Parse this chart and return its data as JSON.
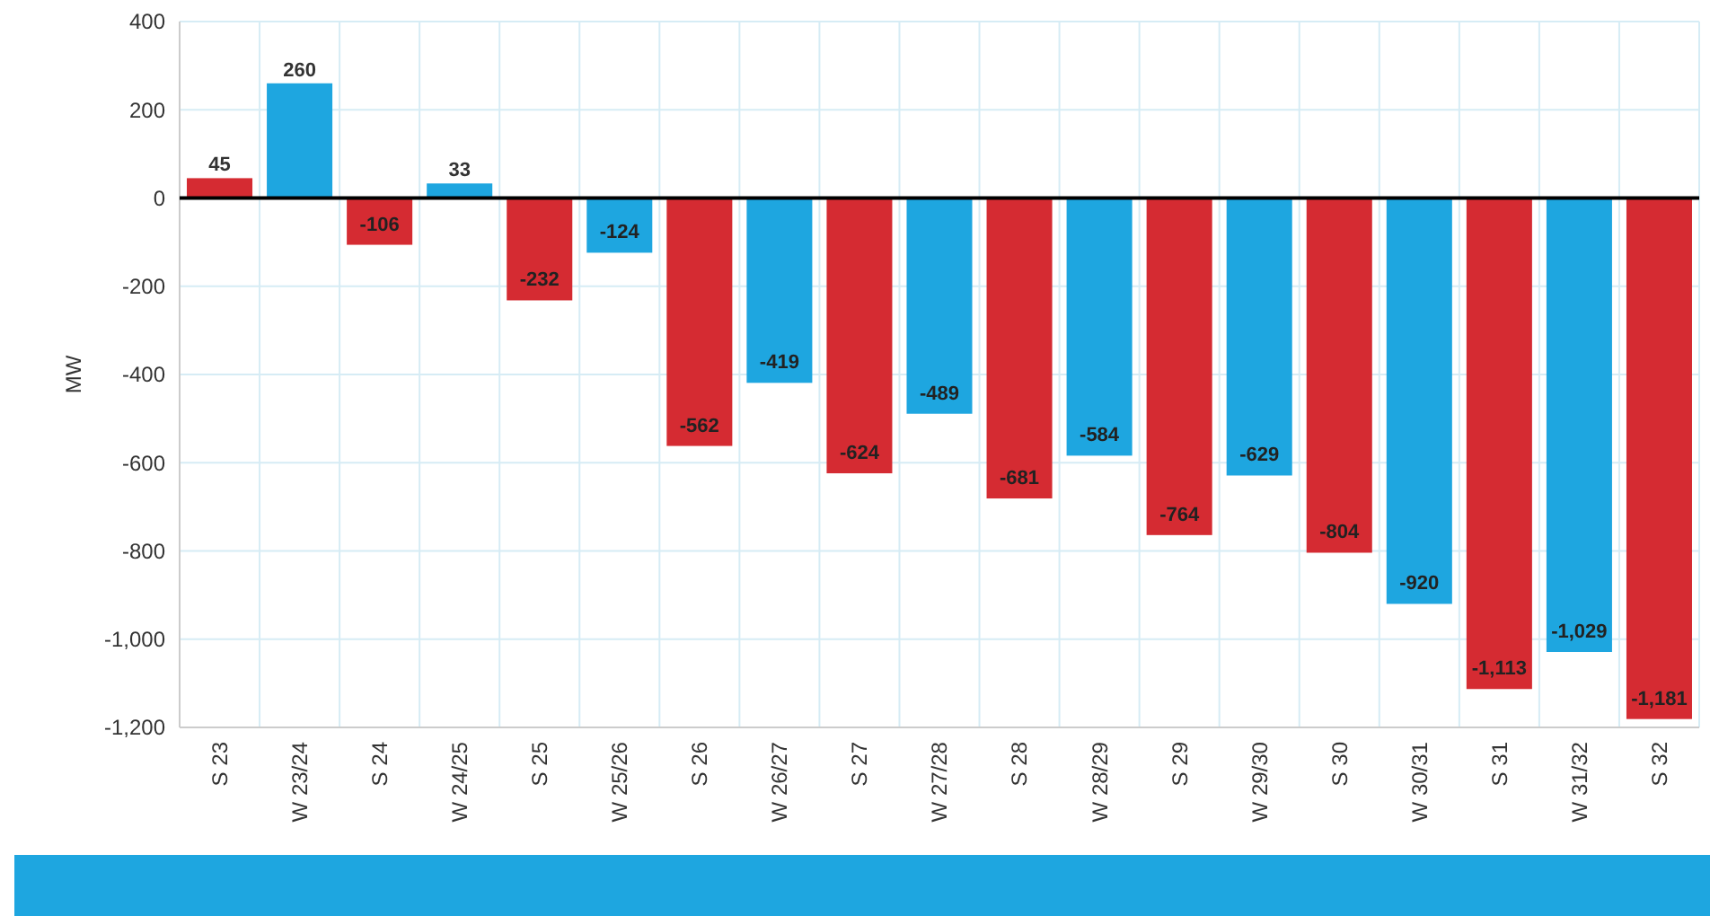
{
  "chart_data": {
    "type": "bar",
    "ylabel": "MW",
    "categories": [
      "S 23",
      "W 23/24",
      "S 24",
      "W 24/25",
      "S 25",
      "W 25/26",
      "S 26",
      "W 26/27",
      "S 27",
      "W 27/28",
      "S 28",
      "W 28/29",
      "S 29",
      "W 29/30",
      "S 30",
      "W 30/31",
      "S 31",
      "W 31/32",
      "S 32"
    ],
    "values": [
      45,
      260,
      -106,
      33,
      -232,
      -124,
      -562,
      -419,
      -624,
      -489,
      -681,
      -584,
      -764,
      -629,
      -804,
      -920,
      -1113,
      -1029,
      -1181
    ],
    "value_labels": [
      "45",
      "260",
      "-106",
      "33",
      "-232",
      "-124",
      "-562",
      "-419",
      "-624",
      "-489",
      "-681",
      "-584",
      "-764",
      "-629",
      "-804",
      "-920",
      "-1,113",
      "-1,029",
      "-1,181"
    ],
    "colors": [
      "#d52b32",
      "#1ea6e0",
      "#d52b32",
      "#1ea6e0",
      "#d52b32",
      "#1ea6e0",
      "#d52b32",
      "#1ea6e0",
      "#d52b32",
      "#1ea6e0",
      "#d52b32",
      "#1ea6e0",
      "#d52b32",
      "#1ea6e0",
      "#d52b32",
      "#1ea6e0",
      "#d52b32",
      "#1ea6e0",
      "#d52b32"
    ],
    "ylim": [
      -1200,
      400
    ],
    "yticks": [
      {
        "value": 400,
        "label": "400"
      },
      {
        "value": 200,
        "label": "200"
      },
      {
        "value": 0,
        "label": "0"
      },
      {
        "value": -200,
        "label": "-200"
      },
      {
        "value": -400,
        "label": "-400"
      },
      {
        "value": -600,
        "label": "-600"
      },
      {
        "value": -800,
        "label": "-800"
      },
      {
        "value": -1000,
        "label": "-1,000"
      },
      {
        "value": -1200,
        "label": "-1,200"
      }
    ],
    "grid": true
  }
}
